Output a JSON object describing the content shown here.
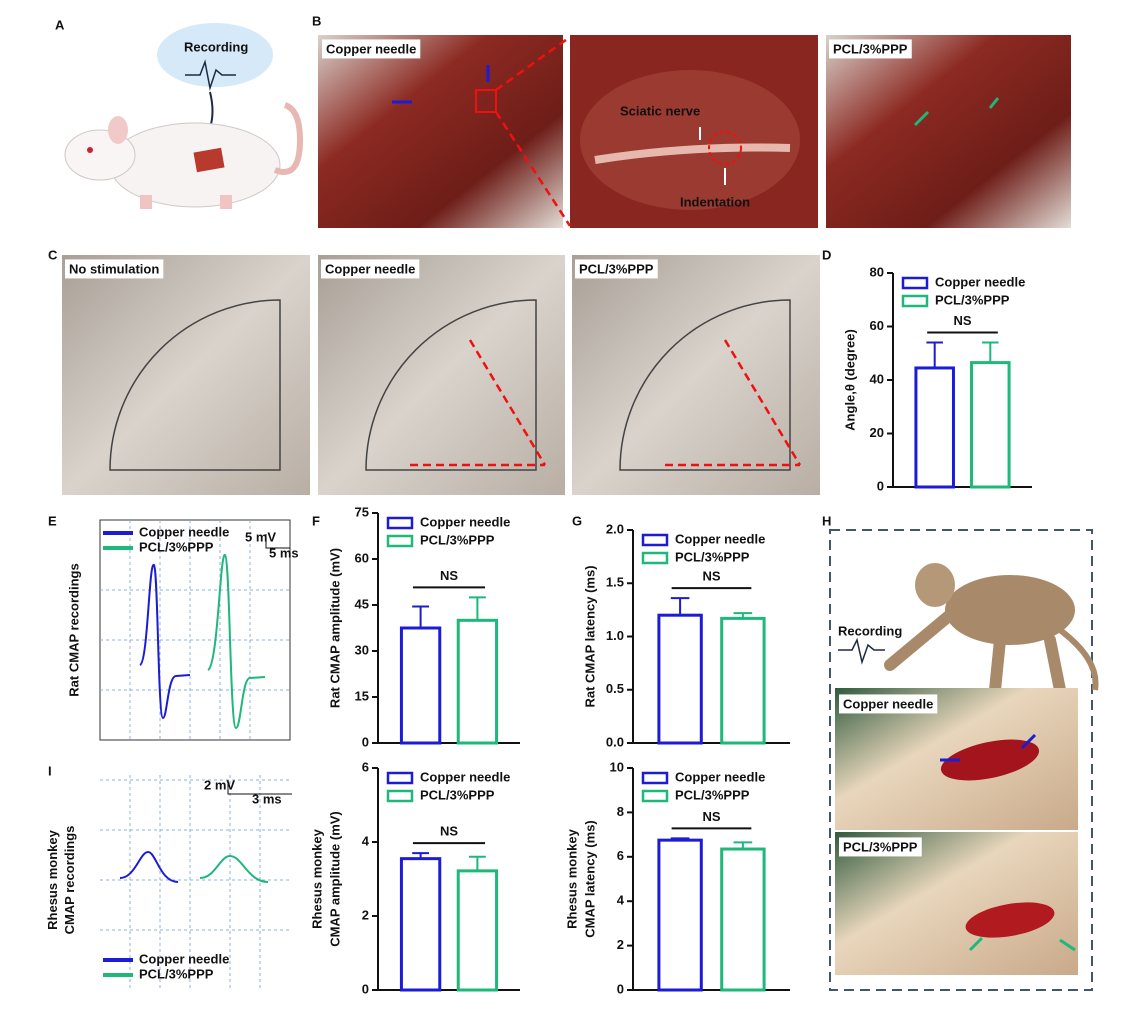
{
  "figure": {
    "panel_labels": [
      "A",
      "B",
      "C",
      "D",
      "E",
      "F",
      "G",
      "H",
      "I"
    ],
    "photo_labels": [
      "Copper needle",
      "PCL/3%PPP",
      "No stimulation",
      "Copper needle",
      "PCL/3%PPP",
      "Copper needle",
      "PCL/3%PPP"
    ],
    "annotations": [
      "Recording",
      "Sciatic nerve",
      "Indentation",
      "Recording"
    ]
  },
  "recordings": [
    {
      "ylabel": [
        "Rat CMAP recordings"
      ],
      "legend": [
        "Copper needle",
        "PCL/3%PPP"
      ],
      "scale": [
        "5 mV",
        "5 ms"
      ]
    },
    {
      "ylabel": [
        "Rhesus monkey",
        "CMAP recordings"
      ],
      "legend": [
        "Copper needle",
        "PCL/3%PPP"
      ],
      "scale": [
        "2 mV",
        "3 ms"
      ]
    }
  ],
  "chart_data": [
    {
      "type": "bar",
      "ylabel": [
        "Angle,θ (degree)"
      ],
      "ylim": [
        0,
        80
      ],
      "yticks": [
        0,
        20,
        40,
        60,
        80
      ],
      "annotation": "NS",
      "series": [
        {
          "name": "Copper needle",
          "color": "#1c1cd6",
          "values": [
            44.5
          ],
          "errors": [
            9.5
          ]
        },
        {
          "name": "PCL/3%PPP",
          "color": "#1db87a",
          "values": [
            46.5
          ],
          "errors": [
            7.5
          ]
        }
      ]
    },
    {
      "type": "bar",
      "ylabel": [
        "Rat CMAP amplitude (mV)"
      ],
      "ylim": [
        0,
        75
      ],
      "yticks": [
        0,
        15,
        30,
        45,
        60,
        75
      ],
      "annotation": "NS",
      "series": [
        {
          "name": "Copper needle",
          "color": "#1c1cd6",
          "values": [
            37.5
          ],
          "errors": [
            7
          ]
        },
        {
          "name": "PCL/3%PPP",
          "color": "#1db87a",
          "values": [
            40
          ],
          "errors": [
            7.5
          ]
        }
      ]
    },
    {
      "type": "bar",
      "ylabel": [
        "Rat CMAP latency (ms)"
      ],
      "ylim": [
        0,
        2
      ],
      "yticks": [
        {
          "value": 0,
          "label": "0.0"
        },
        0.5,
        {
          "value": 1,
          "label": "1.0"
        },
        1.5,
        {
          "value": 2,
          "label": "2.0"
        }
      ],
      "annotation": "NS",
      "series": [
        {
          "name": "Copper needle",
          "color": "#1c1cd6",
          "values": [
            1.2
          ],
          "errors": [
            0.16
          ]
        },
        {
          "name": "PCL/3%PPP",
          "color": "#1db87a",
          "values": [
            1.17
          ],
          "errors": [
            0.05
          ]
        }
      ]
    },
    {
      "type": "bar",
      "ylabel": [
        "Rhesus monkey",
        "CMAP amplitude (mV)"
      ],
      "ylim": [
        0,
        6
      ],
      "yticks": [
        0,
        2,
        4,
        6
      ],
      "annotation": "NS",
      "series": [
        {
          "name": "Copper needle",
          "color": "#1c1cd6",
          "values": [
            3.55
          ],
          "errors": [
            0.15
          ]
        },
        {
          "name": "PCL/3%PPP",
          "color": "#1db87a",
          "values": [
            3.22
          ],
          "errors": [
            0.38
          ]
        }
      ]
    },
    {
      "type": "bar",
      "ylabel": [
        "Rhesus monkey",
        "CMAP latency (ms)"
      ],
      "ylim": [
        0,
        10
      ],
      "yticks": [
        0,
        2,
        4,
        6,
        8,
        10
      ],
      "annotation": "NS",
      "series": [
        {
          "name": "Copper needle",
          "color": "#1c1cd6",
          "values": [
            6.75
          ],
          "errors": [
            0.08
          ]
        },
        {
          "name": "PCL/3%PPP",
          "color": "#1db87a",
          "values": [
            6.35
          ],
          "errors": [
            0.3
          ]
        }
      ]
    }
  ]
}
